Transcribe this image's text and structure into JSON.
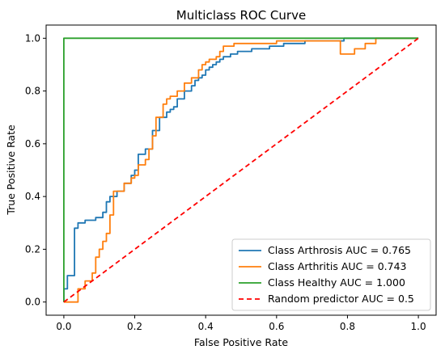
{
  "chart_data": {
    "type": "line",
    "title": "Multiclass ROC Curve",
    "xlabel": "False Positive Rate",
    "ylabel": "True Positive Rate",
    "xlim": [
      -0.05,
      1.05
    ],
    "ylim": [
      -0.05,
      1.05
    ],
    "xticks": [
      "0.0",
      "0.2",
      "0.4",
      "0.6",
      "0.8",
      "1.0"
    ],
    "yticks": [
      "0.0",
      "0.2",
      "0.4",
      "0.6",
      "0.8",
      "1.0"
    ],
    "grid": false,
    "legend_position": "lower-right",
    "series": [
      {
        "name": "Class Arthrosis AUC = 0.765",
        "color": "#1f77b4",
        "style": "solid",
        "x": [
          0.0,
          0.0,
          0.01,
          0.01,
          0.03,
          0.03,
          0.04,
          0.04,
          0.06,
          0.06,
          0.09,
          0.09,
          0.11,
          0.11,
          0.12,
          0.12,
          0.13,
          0.13,
          0.15,
          0.15,
          0.17,
          0.17,
          0.19,
          0.19,
          0.2,
          0.2,
          0.21,
          0.21,
          0.23,
          0.23,
          0.25,
          0.25,
          0.27,
          0.27,
          0.29,
          0.29,
          0.3,
          0.3,
          0.31,
          0.31,
          0.32,
          0.32,
          0.34,
          0.34,
          0.36,
          0.36,
          0.37,
          0.37,
          0.38,
          0.38,
          0.39,
          0.39,
          0.4,
          0.4,
          0.41,
          0.41,
          0.42,
          0.42,
          0.43,
          0.43,
          0.44,
          0.44,
          0.45,
          0.45,
          0.47,
          0.47,
          0.49,
          0.49,
          0.53,
          0.53,
          0.58,
          0.58,
          0.62,
          0.62,
          0.68,
          0.68,
          0.79,
          0.79,
          1.0
        ],
        "y": [
          0.0,
          0.05,
          0.05,
          0.1,
          0.1,
          0.28,
          0.28,
          0.3,
          0.3,
          0.31,
          0.31,
          0.32,
          0.32,
          0.34,
          0.34,
          0.38,
          0.38,
          0.4,
          0.4,
          0.42,
          0.42,
          0.45,
          0.45,
          0.48,
          0.48,
          0.5,
          0.5,
          0.56,
          0.56,
          0.58,
          0.58,
          0.65,
          0.65,
          0.7,
          0.7,
          0.72,
          0.72,
          0.73,
          0.73,
          0.74,
          0.74,
          0.77,
          0.77,
          0.8,
          0.8,
          0.82,
          0.82,
          0.84,
          0.84,
          0.85,
          0.85,
          0.86,
          0.86,
          0.88,
          0.88,
          0.89,
          0.89,
          0.9,
          0.9,
          0.91,
          0.91,
          0.92,
          0.92,
          0.93,
          0.93,
          0.94,
          0.94,
          0.95,
          0.95,
          0.96,
          0.96,
          0.97,
          0.97,
          0.98,
          0.98,
          0.99,
          0.99,
          1.0,
          1.0
        ]
      },
      {
        "name": "Class Arthritis AUC = 0.743",
        "color": "#ff7f0e",
        "style": "solid",
        "x": [
          0.0,
          0.02,
          0.04,
          0.04,
          0.06,
          0.06,
          0.08,
          0.08,
          0.09,
          0.09,
          0.1,
          0.1,
          0.11,
          0.11,
          0.12,
          0.12,
          0.13,
          0.13,
          0.14,
          0.14,
          0.17,
          0.17,
          0.19,
          0.19,
          0.2,
          0.2,
          0.21,
          0.21,
          0.23,
          0.23,
          0.24,
          0.24,
          0.25,
          0.25,
          0.26,
          0.26,
          0.28,
          0.28,
          0.29,
          0.29,
          0.3,
          0.3,
          0.32,
          0.32,
          0.34,
          0.34,
          0.36,
          0.36,
          0.38,
          0.38,
          0.39,
          0.39,
          0.4,
          0.4,
          0.41,
          0.41,
          0.43,
          0.43,
          0.44,
          0.44,
          0.45,
          0.45,
          0.48,
          0.48,
          0.6,
          0.6,
          0.78,
          0.78,
          0.82,
          0.82,
          0.85,
          0.85,
          0.88,
          0.88,
          1.0
        ],
        "y": [
          0.0,
          0.0,
          0.0,
          0.05,
          0.05,
          0.08,
          0.08,
          0.11,
          0.11,
          0.17,
          0.17,
          0.2,
          0.2,
          0.23,
          0.23,
          0.26,
          0.26,
          0.33,
          0.33,
          0.42,
          0.42,
          0.45,
          0.45,
          0.47,
          0.47,
          0.48,
          0.48,
          0.52,
          0.52,
          0.54,
          0.54,
          0.58,
          0.58,
          0.63,
          0.63,
          0.7,
          0.7,
          0.75,
          0.75,
          0.77,
          0.77,
          0.78,
          0.78,
          0.8,
          0.8,
          0.83,
          0.83,
          0.85,
          0.85,
          0.88,
          0.88,
          0.9,
          0.9,
          0.91,
          0.91,
          0.92,
          0.92,
          0.93,
          0.93,
          0.95,
          0.95,
          0.97,
          0.97,
          0.98,
          0.98,
          0.99,
          0.99,
          0.94,
          0.94,
          0.96,
          0.96,
          0.98,
          0.98,
          1.0,
          1.0
        ]
      },
      {
        "name": "Class Healthy AUC = 1.000",
        "color": "#2ca02c",
        "style": "solid",
        "x": [
          0.0,
          0.0,
          1.0
        ],
        "y": [
          0.0,
          1.0,
          1.0
        ]
      },
      {
        "name": "Random predictor AUC = 0.5",
        "color": "#ff0000",
        "style": "dashed",
        "x": [
          0.0,
          1.0
        ],
        "y": [
          0.0,
          1.0
        ]
      }
    ]
  }
}
